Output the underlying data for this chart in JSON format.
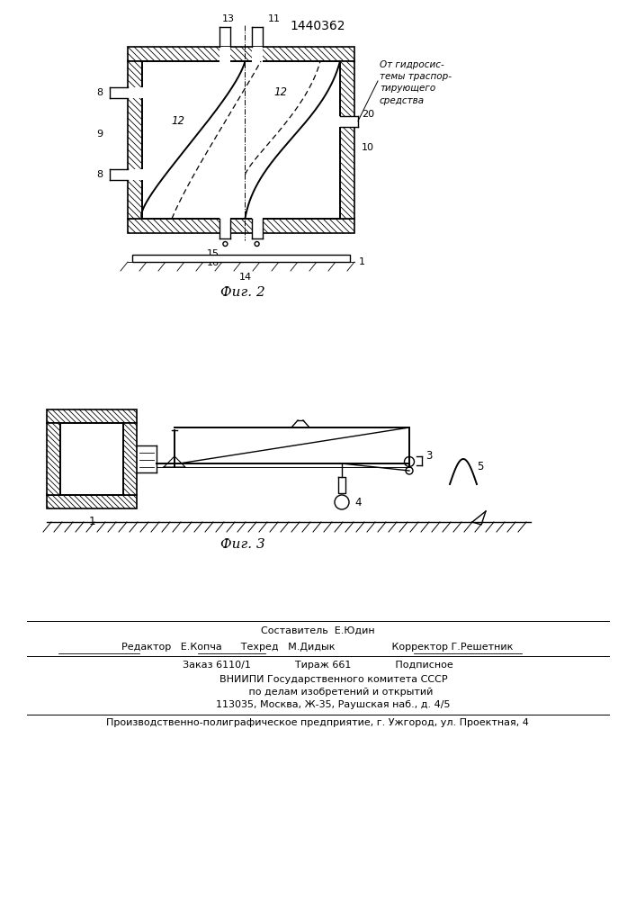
{
  "title": "1440362",
  "fig2_caption": "Фиг. 2",
  "fig3_caption": "Фиг. 3",
  "bg_color": "#ffffff",
  "line_color": "#000000",
  "annotation_right": "От гидросис-\nтемы траспор-\nтирующего\nсредства",
  "footer_lines": [
    "Составитель  Е.Юдин",
    "Редактор   Е.Копча      Техред   М.Дидык                  Корректор Г.Решетник",
    "Заказ 6110/1              Тираж 661              Подписное",
    "          ВНИИПИ Государственного комитета СССР",
    "               по делам изобретений и открытий",
    "          113035, Москва, Ж-35, Раушская наб., д. 4/5",
    "Производственно-полиграфическое предприятие, г. Ужгород, ул. Проектная, 4"
  ]
}
